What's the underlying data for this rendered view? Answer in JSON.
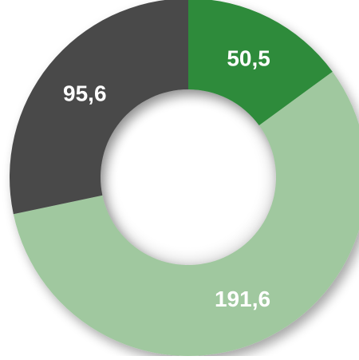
{
  "chart_data": {
    "type": "pie",
    "variant": "donut",
    "title": "",
    "categories": [
      "",
      "",
      ""
    ],
    "values": [
      50.5,
      191.6,
      95.6
    ],
    "data_labels": [
      "50,5",
      "191,6",
      "95,6"
    ],
    "colors": [
      "#2e8b3a",
      "#a0c89f",
      "#4a4a4a"
    ],
    "start_angle_deg": 0,
    "direction": "clockwise",
    "legend": "none",
    "shadow": true
  }
}
